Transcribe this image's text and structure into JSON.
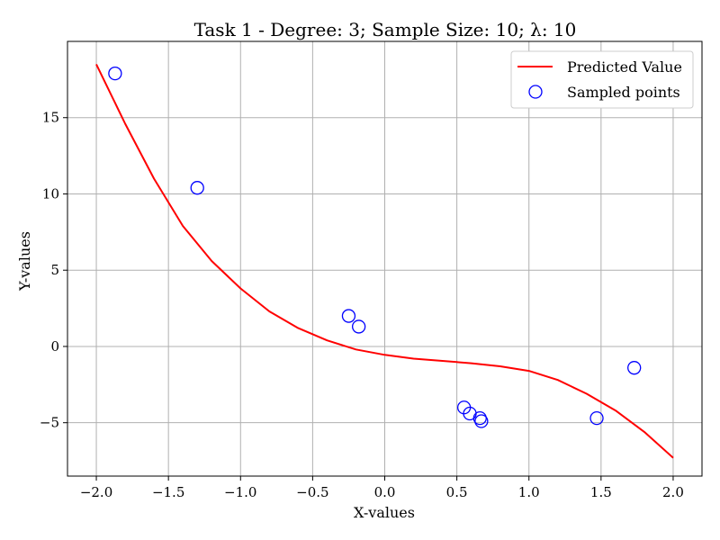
{
  "chart_data": {
    "type": "line",
    "title": "Task 1 - Degree: 3; Sample Size: 10; λ: 10",
    "xlabel": "X-values",
    "ylabel": "Y-values",
    "xlim": [
      -2.2,
      2.2
    ],
    "ylim": [
      -8.5,
      20.0
    ],
    "grid": true,
    "legend_position": "top-right",
    "x_ticks": [
      -2.0,
      -1.5,
      -1.0,
      -0.5,
      0.0,
      0.5,
      1.0,
      1.5,
      2.0
    ],
    "x_tick_labels": [
      "−2.0",
      "−1.5",
      "−1.0",
      "−0.5",
      "0.0",
      "0.5",
      "1.0",
      "1.5",
      "2.0"
    ],
    "y_ticks": [
      -5,
      0,
      5,
      10,
      15
    ],
    "y_tick_labels": [
      "−5",
      "0",
      "5",
      "10",
      "15"
    ],
    "series": [
      {
        "name": "Predicted Value",
        "kind": "line",
        "color": "#ff0000",
        "x": [
          -2.0,
          -1.8,
          -1.6,
          -1.4,
          -1.2,
          -1.0,
          -0.8,
          -0.6,
          -0.4,
          -0.2,
          0.0,
          0.2,
          0.4,
          0.6,
          0.8,
          1.0,
          1.2,
          1.4,
          1.6,
          1.8,
          2.0
        ],
        "y": [
          18.5,
          14.6,
          11.0,
          7.9,
          5.6,
          3.8,
          2.3,
          1.2,
          0.4,
          -0.2,
          -0.55,
          -0.8,
          -0.95,
          -1.1,
          -1.3,
          -1.6,
          -2.2,
          -3.1,
          -4.2,
          -5.6,
          -7.3
        ]
      },
      {
        "name": "Sampled points",
        "kind": "scatter",
        "color": "#0000ff",
        "x": [
          -1.87,
          -1.3,
          -0.25,
          -0.18,
          0.55,
          0.59,
          0.66,
          0.67,
          1.47,
          1.73
        ],
        "y": [
          17.9,
          10.4,
          2.0,
          1.3,
          -4.0,
          -4.4,
          -4.7,
          -4.9,
          -4.7,
          -1.4
        ]
      }
    ]
  }
}
